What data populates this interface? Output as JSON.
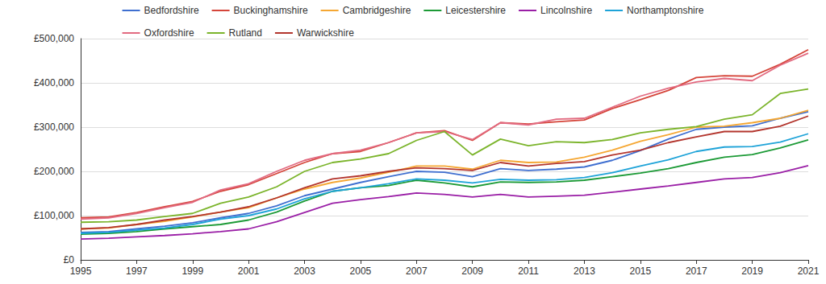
{
  "chart_data": {
    "type": "line",
    "x": [
      1995,
      1996,
      1997,
      1998,
      1999,
      2000,
      2001,
      2002,
      2003,
      2004,
      2005,
      2006,
      2007,
      2008,
      2009,
      2010,
      2011,
      2012,
      2013,
      2014,
      2015,
      2016,
      2017,
      2018,
      2019,
      2020,
      2021
    ],
    "xlim": [
      1995,
      2021
    ],
    "xticks": [
      1995,
      1997,
      1999,
      2001,
      2003,
      2005,
      2007,
      2009,
      2011,
      2013,
      2015,
      2017,
      2019,
      2021
    ],
    "ylim": [
      0,
      500000
    ],
    "yticks": [
      {
        "value": 0,
        "label": "£0"
      },
      {
        "value": 100000,
        "label": "£100,000"
      },
      {
        "value": 200000,
        "label": "£200,000"
      },
      {
        "value": 300000,
        "label": "£300,000"
      },
      {
        "value": 400000,
        "label": "£400,000"
      },
      {
        "value": 500000,
        "label": "£500,000"
      }
    ],
    "grid": true,
    "legend": "top",
    "marker": "none",
    "series": [
      {
        "name": "Bedfordshire",
        "color": "#3f6fd0",
        "values": [
          62000,
          64000,
          70000,
          76000,
          84000,
          95000,
          105000,
          122000,
          145000,
          160000,
          175000,
          188000,
          200000,
          198000,
          188000,
          206000,
          202000,
          205000,
          210000,
          225000,
          247000,
          273000,
          295000,
          300000,
          303000,
          320000,
          335000
        ]
      },
      {
        "name": "Buckinghamshire",
        "color": "#d5453a",
        "values": [
          95000,
          97000,
          107000,
          120000,
          132000,
          155000,
          170000,
          195000,
          220000,
          240000,
          245000,
          265000,
          287000,
          292000,
          270000,
          310000,
          307000,
          312000,
          316000,
          342000,
          362000,
          383000,
          412000,
          416000,
          415000,
          442000,
          475000
        ]
      },
      {
        "name": "Cambridgeshire",
        "color": "#f5a733",
        "values": [
          70000,
          72000,
          80000,
          87000,
          97000,
          108000,
          118000,
          140000,
          160000,
          175000,
          185000,
          198000,
          212000,
          212000,
          205000,
          225000,
          220000,
          221000,
          232000,
          248000,
          268000,
          283000,
          300000,
          302000,
          310000,
          320000,
          338000
        ]
      },
      {
        "name": "Leicestershire",
        "color": "#1c9a36",
        "values": [
          58000,
          60000,
          64000,
          70000,
          75000,
          80000,
          90000,
          108000,
          133000,
          155000,
          163000,
          168000,
          180000,
          174000,
          165000,
          176000,
          175000,
          176000,
          180000,
          188000,
          196000,
          206000,
          220000,
          232000,
          238000,
          253000,
          271000
        ]
      },
      {
        "name": "Lincolnshire",
        "color": "#9a1fa6",
        "values": [
          47000,
          49000,
          52000,
          55000,
          59000,
          64000,
          70000,
          86000,
          107000,
          128000,
          136000,
          143000,
          151000,
          148000,
          142000,
          148000,
          142000,
          144000,
          146000,
          153000,
          160000,
          167000,
          175000,
          183000,
          186000,
          197000,
          213000
        ]
      },
      {
        "name": "Northamptonshire",
        "color": "#1ea3d8",
        "values": [
          60000,
          62000,
          67000,
          72000,
          80000,
          92000,
          100000,
          115000,
          138000,
          155000,
          163000,
          172000,
          183000,
          180000,
          174000,
          182000,
          180000,
          181000,
          186000,
          197000,
          212000,
          226000,
          245000,
          255000,
          256000,
          266000,
          285000
        ]
      },
      {
        "name": "Oxfordshire",
        "color": "#e26a80",
        "values": [
          92000,
          95000,
          105000,
          118000,
          130000,
          158000,
          172000,
          200000,
          225000,
          240000,
          248000,
          265000,
          287000,
          290000,
          272000,
          310000,
          305000,
          318000,
          320000,
          345000,
          370000,
          388000,
          402000,
          410000,
          405000,
          440000,
          467000
        ]
      },
      {
        "name": "Rutland",
        "color": "#7bb42b",
        "values": [
          85000,
          86000,
          90000,
          98000,
          105000,
          128000,
          142000,
          165000,
          200000,
          220000,
          228000,
          240000,
          270000,
          290000,
          237000,
          273000,
          258000,
          267000,
          265000,
          272000,
          287000,
          295000,
          301000,
          318000,
          328000,
          376000,
          386000
        ]
      },
      {
        "name": "Warwickshire",
        "color": "#b3352d",
        "values": [
          70000,
          73000,
          80000,
          90000,
          98000,
          108000,
          120000,
          140000,
          163000,
          183000,
          190000,
          200000,
          208000,
          206000,
          202000,
          220000,
          212000,
          218000,
          222000,
          237000,
          248000,
          265000,
          278000,
          290000,
          290000,
          302000,
          325000
        ]
      }
    ]
  }
}
